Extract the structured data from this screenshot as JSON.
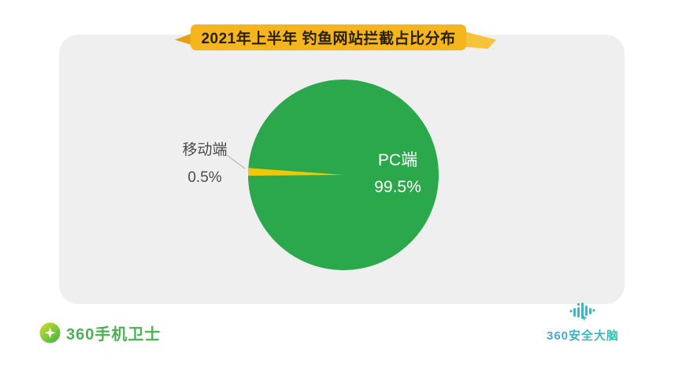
{
  "title": "2021年上半年 钓鱼网站拦截占比分布",
  "chart_data": {
    "type": "pie",
    "title": "2021年上半年 钓鱼网站拦截占比分布",
    "unit": "%",
    "legend_position": "none",
    "slices": [
      {
        "label": "PC端",
        "value": 99.5,
        "display_value": "99.5%",
        "color": "#2aa84b",
        "label_position": "inside",
        "text_color": "#ffffff"
      },
      {
        "label": "移动端",
        "value": 0.5,
        "display_value": "0.5%",
        "color": "#edc90a",
        "label_position": "outside-left",
        "text_color": "#4b4b4b"
      }
    ]
  },
  "footer": {
    "left_brand": "360手机卫士",
    "right_brand": "360安全大脑"
  },
  "colors": {
    "ribbon_bg": "#f5b51d",
    "ribbon_text": "#2a2102",
    "panel_bg": "#efeff0",
    "leader_line": "#b9b9b9",
    "left_brand_green": "#4cb153",
    "right_brand_teal": "#38b1c4"
  },
  "icons": {
    "left_logo": "360-mobile-guard-shield-icon",
    "right_logo": "360-security-brain-soundwave-icon"
  }
}
